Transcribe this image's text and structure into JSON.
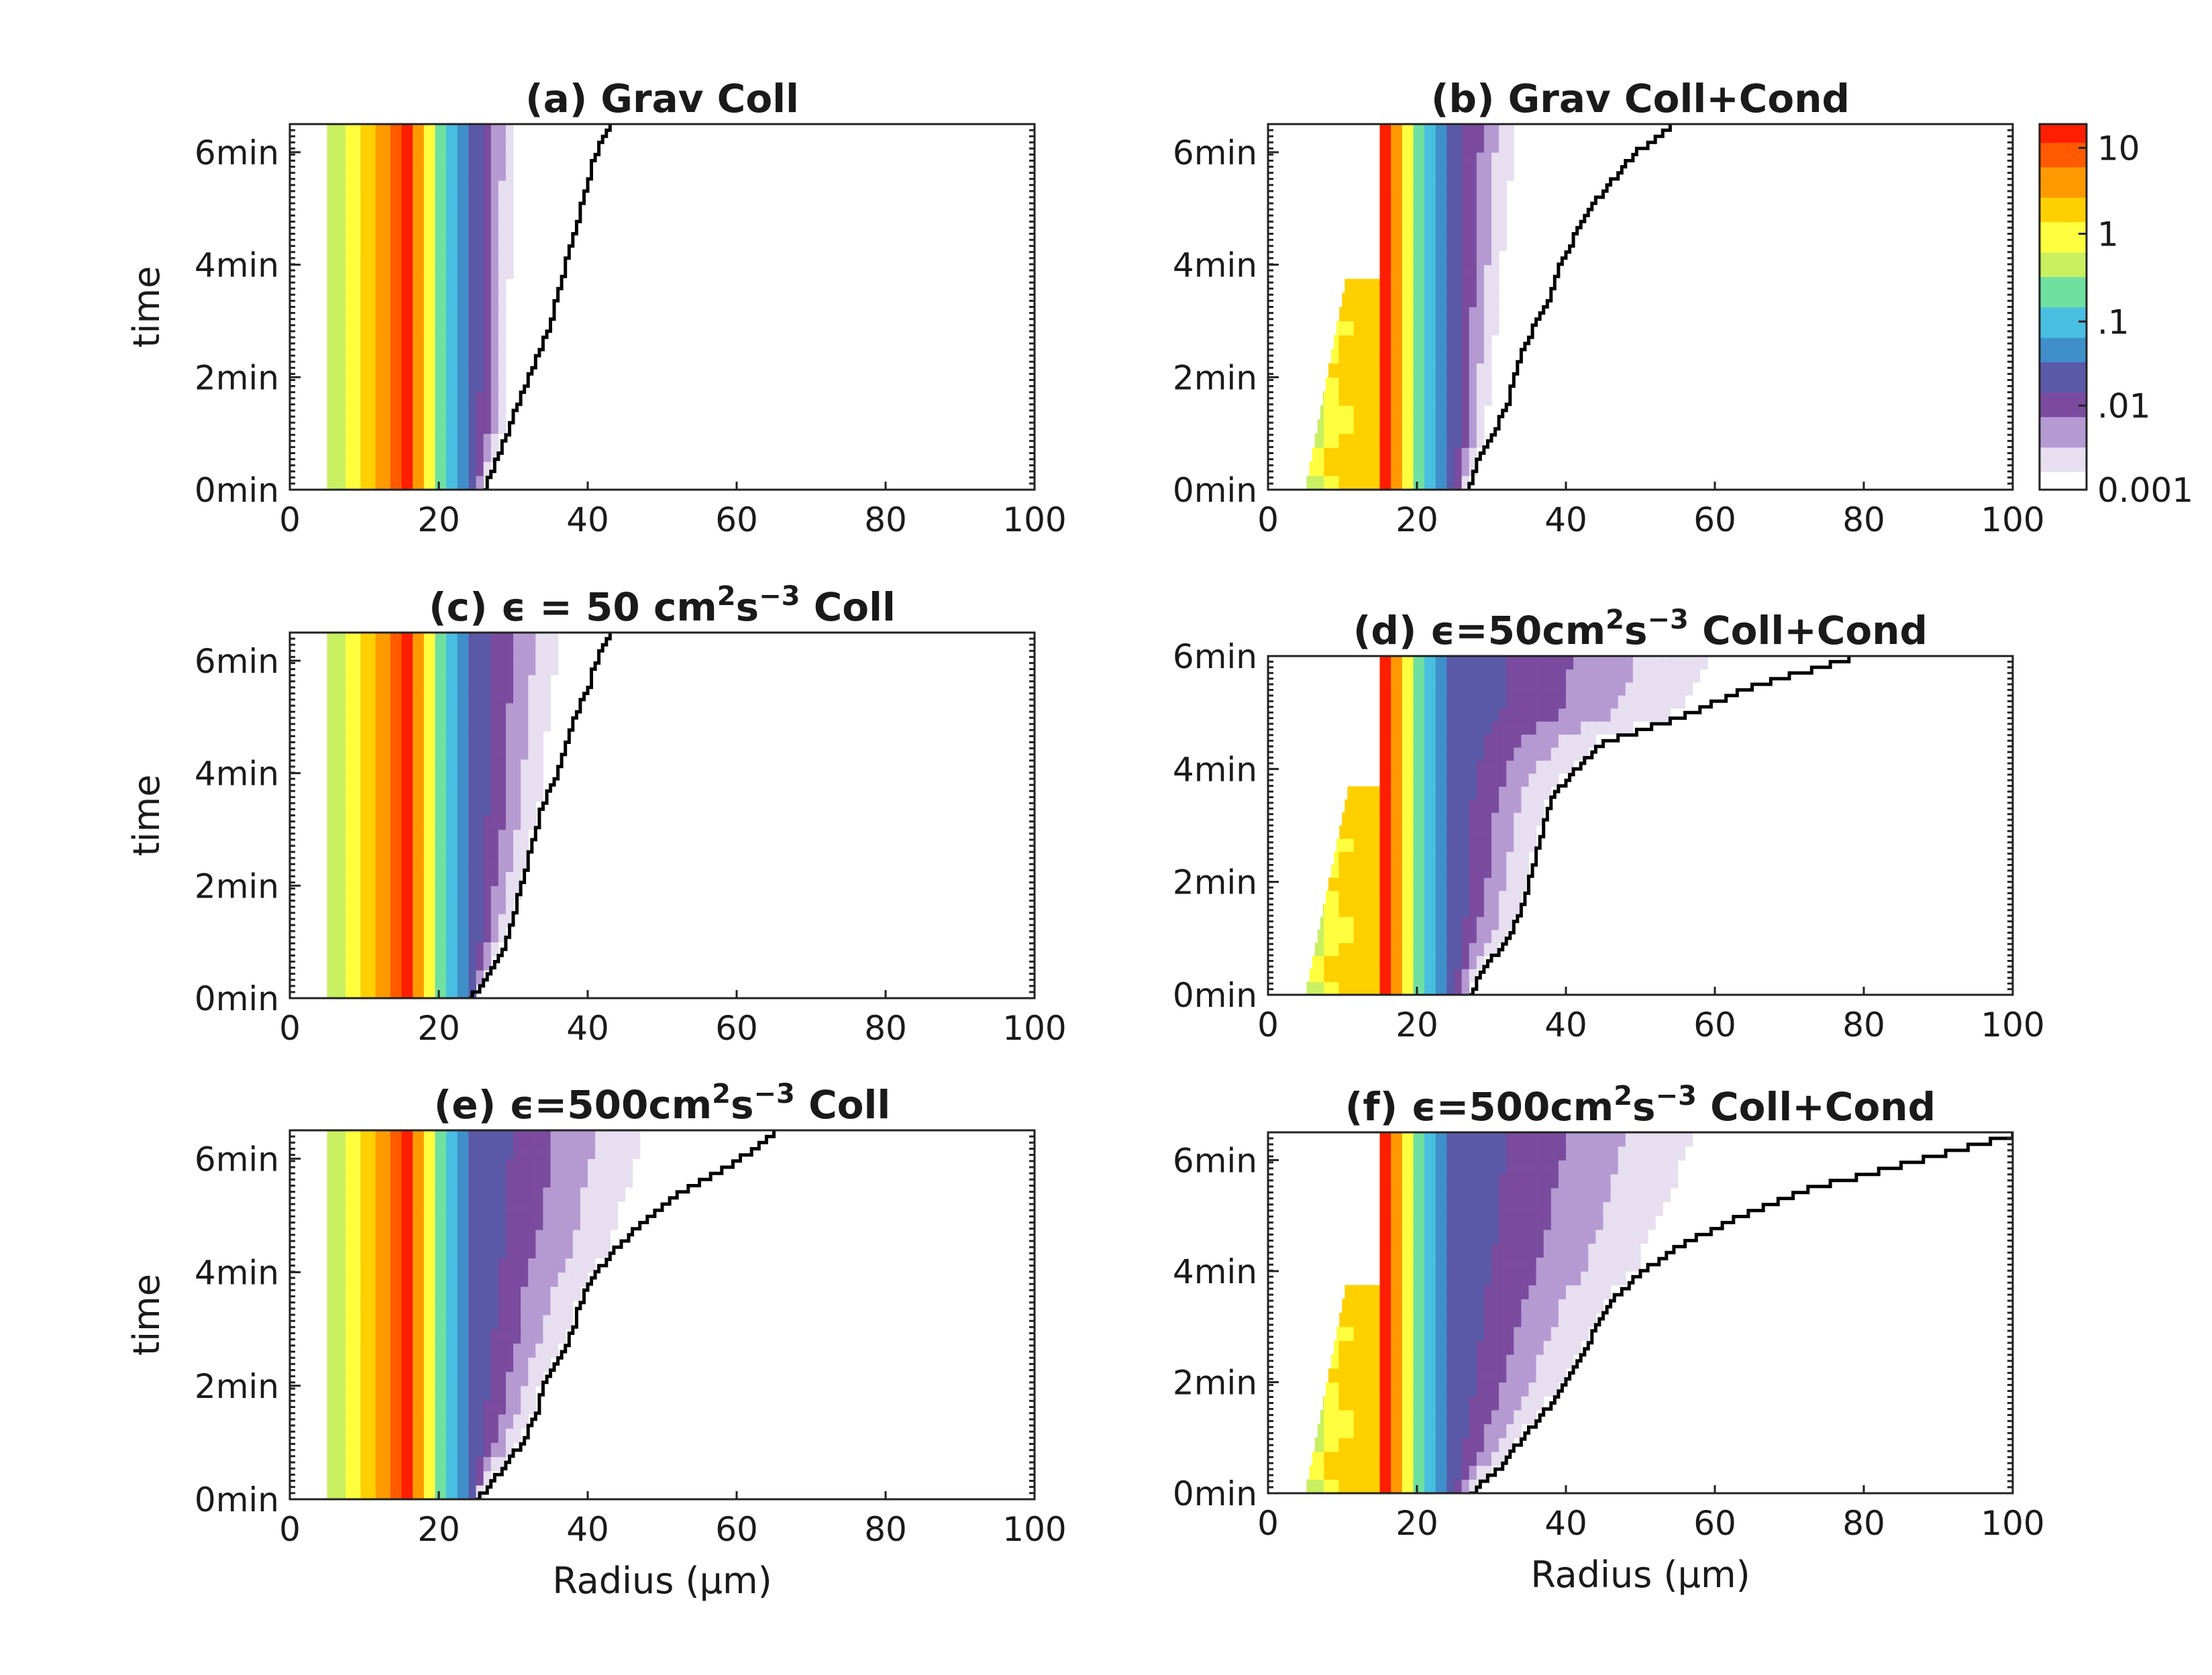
{
  "figure": {
    "xlabel": "Radius (μm)",
    "ylabel": "time",
    "x_ticks": [
      "0",
      "20",
      "40",
      "60",
      "80",
      "100"
    ],
    "y_ticks": [
      "0min",
      "2min",
      "4min",
      "6min"
    ]
  },
  "colorbar": {
    "tick_labels": [
      "10",
      "1",
      ".1",
      ".01",
      "0.001"
    ],
    "scale": "log",
    "colors": [
      "#ffffff",
      "#e7def0",
      "#b59ad2",
      "#7a4b9e",
      "#5b5aa8",
      "#3f8fcb",
      "#48bfe0",
      "#6fe0a0",
      "#c8f060",
      "#ffff40",
      "#ffd000",
      "#ff9900",
      "#ff5a00",
      "#ff1e00"
    ]
  },
  "chart_data": [
    {
      "id": "a",
      "type": "heatmap",
      "title": {
        "pre": "(a) Grav Coll",
        "sup": "",
        "post": ""
      },
      "xlim": [
        0,
        100
      ],
      "ylim": [
        0,
        6.5
      ],
      "xlabel": "",
      "ylabel": "time",
      "condensation": false,
      "spread_start_um": 28,
      "spread_end_um": 30,
      "max_radius_curve": {
        "t_min": [
          0,
          1,
          2,
          3,
          4,
          5,
          6,
          6.5
        ],
        "radius_um": [
          26,
          29,
          32,
          35,
          37,
          39,
          41,
          43
        ]
      }
    },
    {
      "id": "b",
      "type": "heatmap",
      "title": {
        "pre": "(b) Grav Coll+Cond",
        "sup": "",
        "post": ""
      },
      "xlim": [
        0,
        100
      ],
      "ylim": [
        0,
        6.5
      ],
      "xlabel": "",
      "ylabel": "",
      "condensation": true,
      "spread_start_um": 28,
      "spread_end_um": 33,
      "max_radius_curve": {
        "t_min": [
          0,
          0.5,
          1,
          1.5,
          2,
          2.5,
          3,
          3.5,
          4,
          4.5,
          5,
          5.5,
          6,
          6.5
        ],
        "radius_um": [
          27,
          28,
          30,
          32,
          33,
          34,
          36,
          38,
          39,
          41,
          43,
          46,
          49,
          54
        ]
      }
    },
    {
      "id": "c",
      "type": "heatmap",
      "title": {
        "pre": "(c) ϵ = 50 cm",
        "sup": "2",
        "post": "s",
        "sup2": "−3",
        "post2": " Coll"
      },
      "xlim": [
        0,
        100
      ],
      "ylim": [
        0,
        6.5
      ],
      "xlabel": "",
      "ylabel": "time",
      "condensation": false,
      "spread_start_um": 30,
      "spread_end_um": 36,
      "max_radius_curve": {
        "t_min": [
          0,
          0.5,
          1,
          1.5,
          2,
          2.5,
          3,
          3.5,
          4,
          4.5,
          5,
          5.5,
          6,
          6.5
        ],
        "radius_um": [
          24,
          27,
          29,
          30,
          31,
          32,
          33,
          34,
          36,
          37,
          38,
          40,
          41,
          43
        ]
      }
    },
    {
      "id": "d",
      "type": "heatmap",
      "title": {
        "pre": "(d) ϵ=50cm",
        "sup": "2",
        "post": "s",
        "sup2": "−3",
        "post2": " Coll+Cond"
      },
      "xlim": [
        0,
        100
      ],
      "ylim": [
        0,
        6
      ],
      "xlabel": "",
      "ylabel": "",
      "condensation": true,
      "spread_start_um": 34,
      "spread_end_um": 60,
      "max_radius_curve": {
        "t_min": [
          0,
          0.5,
          1,
          1.5,
          2,
          2.5,
          3,
          3.5,
          4,
          4.5,
          5,
          5.5,
          6
        ],
        "radius_um": [
          27,
          29,
          32,
          34,
          35,
          36,
          37,
          38,
          41,
          45,
          56,
          65,
          78
        ]
      }
    },
    {
      "id": "e",
      "type": "heatmap",
      "title": {
        "pre": "(e) ϵ=500cm",
        "sup": "2",
        "post": "s",
        "sup2": "−3",
        "post2": " Coll"
      },
      "xlim": [
        0,
        100
      ],
      "ylim": [
        0,
        6.5
      ],
      "xlabel": "Radius (μm)",
      "ylabel": "time",
      "condensation": false,
      "spread_start_um": 32,
      "spread_end_um": 48,
      "max_radius_curve": {
        "t_min": [
          0,
          0.5,
          1,
          1.5,
          2,
          2.5,
          3,
          3.5,
          4,
          4.5,
          5,
          5.5,
          6,
          6.5
        ],
        "radius_um": [
          25,
          28,
          31,
          33,
          34,
          36,
          38,
          39,
          41,
          44,
          48,
          53,
          60,
          65
        ]
      }
    },
    {
      "id": "f",
      "type": "heatmap",
      "title": {
        "pre": "(f) ϵ=500cm",
        "sup": "2",
        "post": "s",
        "sup2": "−3",
        "post2": " Coll+Cond"
      },
      "xlim": [
        0,
        100
      ],
      "ylim": [
        0,
        6.5
      ],
      "xlabel": "Radius (μm)",
      "ylabel": "",
      "condensation": true,
      "spread_start_um": 36,
      "spread_end_um": 58,
      "max_radius_curve": {
        "t_min": [
          0,
          0.5,
          1,
          1.5,
          2,
          2.5,
          3,
          3.5,
          4,
          4.5,
          5,
          5.5,
          6,
          6.5
        ],
        "radius_um": [
          27,
          31,
          34,
          37,
          40,
          42,
          44,
          46,
          50,
          55,
          63,
          72,
          86,
          100
        ]
      }
    }
  ]
}
